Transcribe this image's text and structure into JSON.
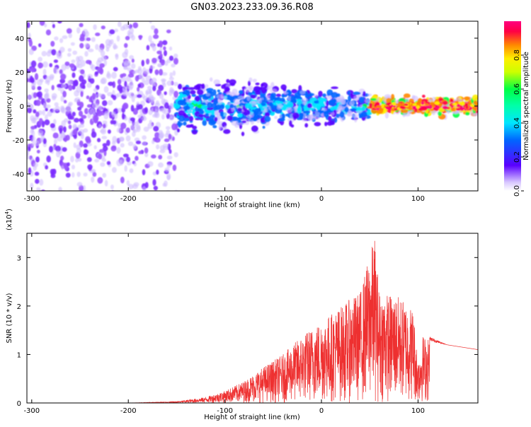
{
  "page_title": "GN03.2023.233.09.36.R08",
  "chart_data": [
    {
      "type": "heatmap",
      "title": "GN03.2023.233.09.36.R08",
      "xlabel": "Height of straight line (km)",
      "ylabel": "Frequency (Hz)",
      "xlim": [
        -305,
        162
      ],
      "ylim": [
        -50,
        50
      ],
      "x_ticks": [
        -300,
        -200,
        -100,
        0,
        100
      ],
      "x_tick_labels": [
        "-300",
        "-200",
        "-100",
        "0",
        "100"
      ],
      "y_ticks": [
        -40,
        -20,
        0,
        20,
        40
      ],
      "y_tick_labels": [
        "-40",
        "-20",
        "0",
        "20",
        "40"
      ],
      "colorbar": {
        "label": "Normalized spectral amplitude",
        "range": [
          0,
          1
        ],
        "ticks": [
          0.0,
          0.2,
          0.4,
          0.6,
          0.8
        ],
        "tick_labels": [
          "0.0",
          "0.2",
          "0.4",
          "0.6",
          "0.8"
        ],
        "colors": [
          "#ffffff",
          "#5a00ff",
          "#0066ff",
          "#00e5ff",
          "#00ff44",
          "#ffee00",
          "#ff8800",
          "#ff0044",
          "#ff0080"
        ]
      },
      "regions": [
        {
          "x_range": [
            -305,
            -150
          ],
          "freq_half_width": 50,
          "amplitude": 0.1,
          "description_color": "#7b2bff"
        },
        {
          "x_range": [
            -150,
            50
          ],
          "freq_half_width": 15,
          "amplitude": 0.25
        },
        {
          "x_range": [
            50,
            162
          ],
          "freq_half_width": 5,
          "amplitude": 0.65
        }
      ],
      "grid": false
    },
    {
      "type": "line",
      "xlabel": "Height of straight line (km)",
      "ylabel": "SNR (10 * v/v)",
      "multiplier_label": "(x10",
      "multiplier_exponent": "4",
      "xlim": [
        -305,
        162
      ],
      "ylim": [
        0,
        3.5
      ],
      "x_ticks": [
        -300,
        -200,
        -100,
        0,
        100
      ],
      "x_tick_labels": [
        "-300",
        "-200",
        "-100",
        "0",
        "100"
      ],
      "y_ticks": [
        0,
        1,
        2,
        3
      ],
      "y_tick_labels": [
        "0",
        "1",
        "2",
        "3"
      ],
      "line_color": "#ee3030",
      "envelope": {
        "x": [
          -305,
          -200,
          -150,
          -120,
          -100,
          -80,
          -60,
          -40,
          -20,
          0,
          20,
          40,
          55,
          60,
          80,
          95,
          100,
          105,
          115,
          130,
          162
        ],
        "y": [
          0.0,
          0.0,
          0.03,
          0.12,
          0.25,
          0.45,
          0.75,
          1.0,
          1.4,
          1.7,
          2.0,
          2.3,
          3.45,
          2.3,
          2.2,
          1.95,
          0.9,
          1.4,
          1.3,
          1.2,
          1.1
        ]
      },
      "grid": false
    }
  ]
}
